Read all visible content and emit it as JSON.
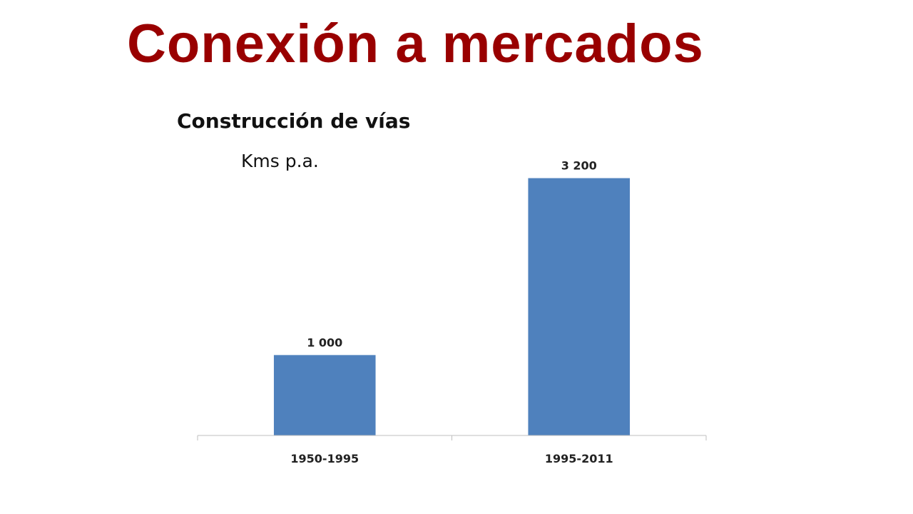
{
  "slide": {
    "title": "Conexión a mercados"
  },
  "chart_data": {
    "type": "bar",
    "title": "Construcción de vías",
    "subtitle": "Kms p.a.",
    "categories": [
      "1950-1995",
      "1995-2011"
    ],
    "values": [
      1000,
      3200
    ],
    "data_labels": [
      "1 000",
      "3 200"
    ],
    "xlabel": "",
    "ylabel": "",
    "ylim": [
      0,
      3400
    ],
    "grid": false,
    "legend": "none",
    "bar_color": "#4F81BD",
    "axis_color": "#BFBFBF"
  },
  "colors": {
    "title": "#990000",
    "text": "#111111"
  }
}
